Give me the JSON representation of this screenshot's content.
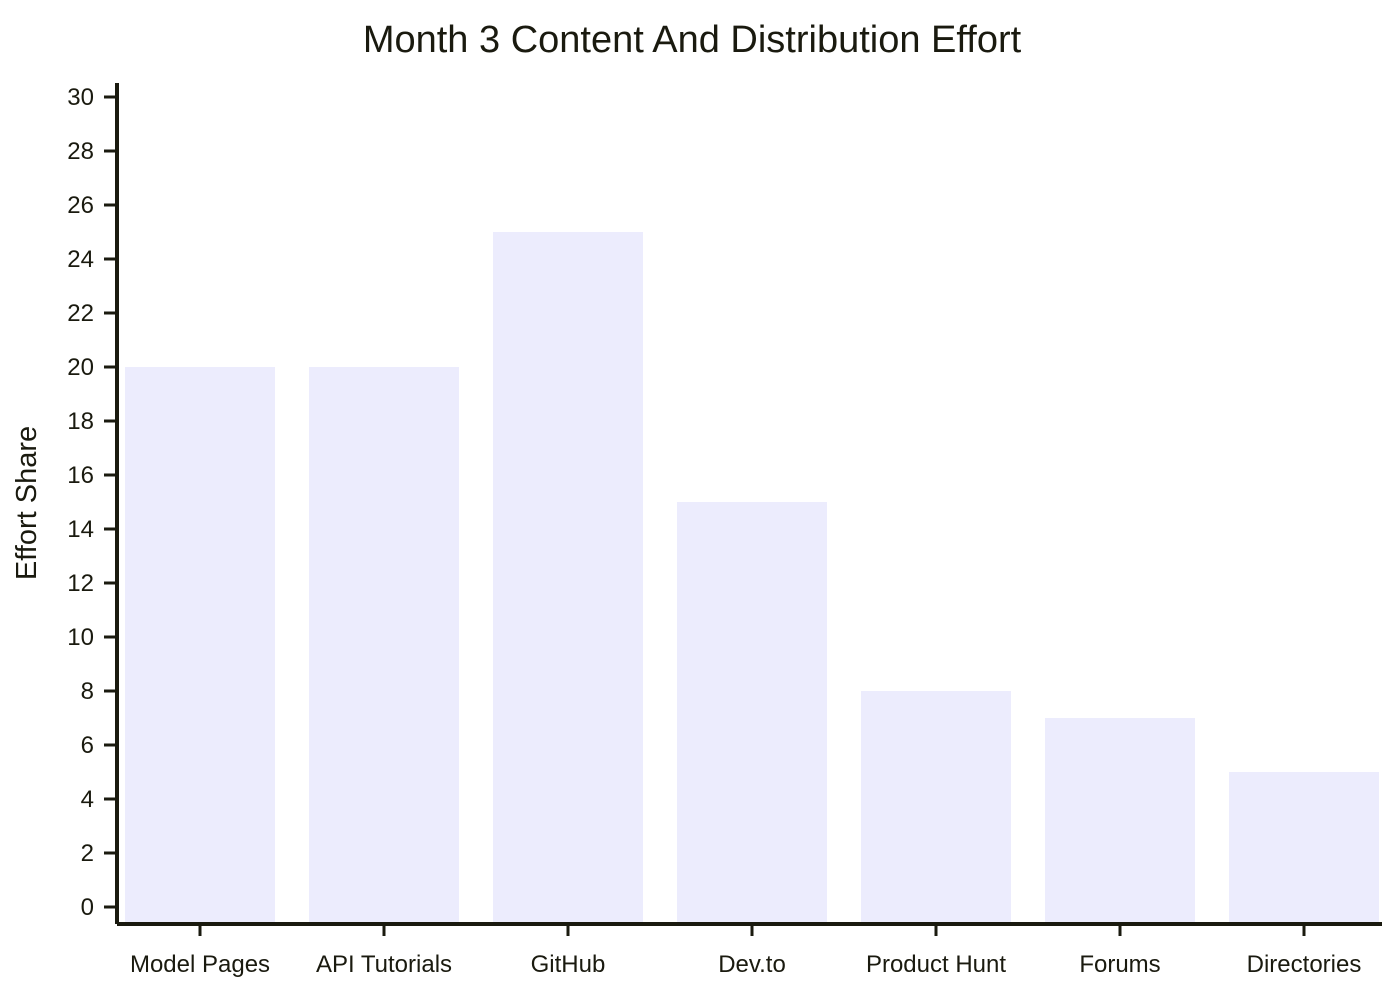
{
  "chart_data": {
    "type": "bar",
    "title": "Month 3 Content And Distribution Effort",
    "xlabel": "",
    "ylabel": "Effort Share",
    "categories": [
      "Model Pages",
      "API Tutorials",
      "GitHub",
      "Dev.to",
      "Product Hunt",
      "Forums",
      "Directories"
    ],
    "values": [
      20,
      20,
      25,
      15,
      8,
      7,
      5
    ],
    "ylim": [
      0,
      30
    ],
    "yticks": [
      0,
      2,
      4,
      6,
      8,
      10,
      12,
      14,
      16,
      18,
      20,
      22,
      24,
      26,
      28,
      30
    ],
    "bar_color": "#ececfd",
    "axis_color": "#1a1a0f",
    "grid": false,
    "legend": "none"
  }
}
